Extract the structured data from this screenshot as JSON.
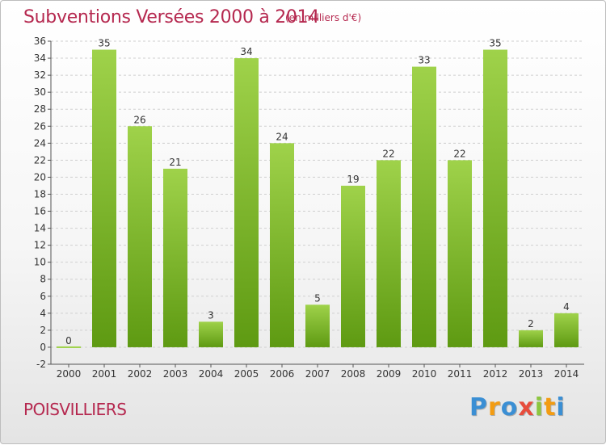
{
  "title": "Subventions Versées 2000 à 2014",
  "subtitle": "(en milliers d'€)",
  "commune": "POISVILLIERS",
  "logo": {
    "letters": [
      {
        "ch": "P",
        "color": "#3b8fd4"
      },
      {
        "ch": "r",
        "color": "#f39c12"
      },
      {
        "ch": "o",
        "color": "#3b8fd4"
      },
      {
        "ch": "x",
        "color": "#e74c3c"
      },
      {
        "ch": "i",
        "color": "#8cc63f"
      },
      {
        "ch": "t",
        "color": "#f39c12"
      },
      {
        "ch": "i",
        "color": "#3b8fd4"
      }
    ]
  },
  "colors": {
    "accent": "#b5284f",
    "bar_top": "#9fd24a",
    "bar_bottom": "#5e9a12",
    "axis": "#555555",
    "grid": "#cfcfcf"
  },
  "chart_data": {
    "type": "bar",
    "categories": [
      "2000",
      "2001",
      "2002",
      "2003",
      "2004",
      "2005",
      "2006",
      "2007",
      "2008",
      "2009",
      "2010",
      "2011",
      "2012",
      "2013",
      "2014"
    ],
    "values": [
      0,
      35,
      26,
      21,
      3,
      34,
      24,
      5,
      19,
      22,
      33,
      22,
      35,
      2,
      4
    ],
    "data_labels": [
      "0",
      "35",
      "26",
      "21",
      "3",
      "34",
      "24",
      "5",
      "19",
      "22",
      "33",
      "22",
      "35",
      "2",
      "4"
    ],
    "yticks": [
      -2,
      0,
      2,
      4,
      6,
      8,
      10,
      12,
      14,
      16,
      18,
      20,
      22,
      24,
      26,
      28,
      30,
      32,
      34,
      36
    ],
    "ylim": [
      -2,
      36
    ],
    "grid": true
  }
}
